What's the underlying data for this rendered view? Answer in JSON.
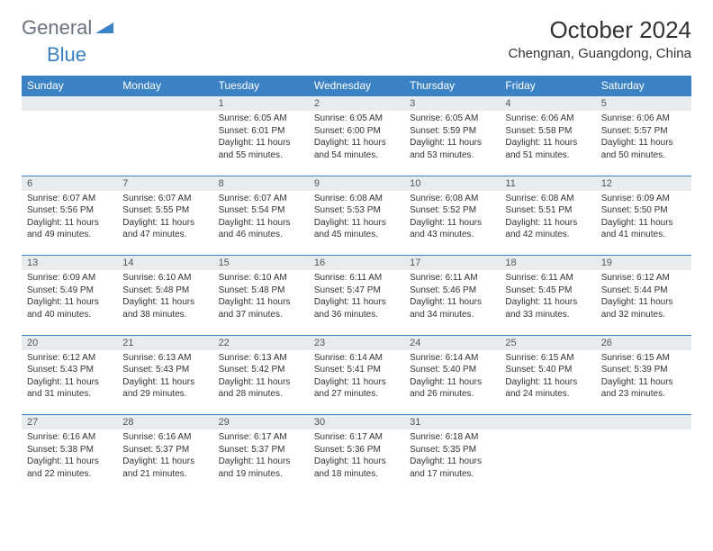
{
  "brand": {
    "general": "General",
    "blue": "Blue"
  },
  "title": "October 2024",
  "location": "Chengnan, Guangdong, China",
  "colors": {
    "header_bg": "#3b82c4",
    "header_text": "#ffffff",
    "daynum_bg": "#e8ecef",
    "grid_line": "#3b82c4",
    "text": "#333333",
    "logo_gray": "#6b7280"
  },
  "dayNames": [
    "Sunday",
    "Monday",
    "Tuesday",
    "Wednesday",
    "Thursday",
    "Friday",
    "Saturday"
  ],
  "weeks": [
    [
      null,
      null,
      {
        "n": "1",
        "sr": "Sunrise: 6:05 AM",
        "ss": "Sunset: 6:01 PM",
        "dl": "Daylight: 11 hours and 55 minutes."
      },
      {
        "n": "2",
        "sr": "Sunrise: 6:05 AM",
        "ss": "Sunset: 6:00 PM",
        "dl": "Daylight: 11 hours and 54 minutes."
      },
      {
        "n": "3",
        "sr": "Sunrise: 6:05 AM",
        "ss": "Sunset: 5:59 PM",
        "dl": "Daylight: 11 hours and 53 minutes."
      },
      {
        "n": "4",
        "sr": "Sunrise: 6:06 AM",
        "ss": "Sunset: 5:58 PM",
        "dl": "Daylight: 11 hours and 51 minutes."
      },
      {
        "n": "5",
        "sr": "Sunrise: 6:06 AM",
        "ss": "Sunset: 5:57 PM",
        "dl": "Daylight: 11 hours and 50 minutes."
      }
    ],
    [
      {
        "n": "6",
        "sr": "Sunrise: 6:07 AM",
        "ss": "Sunset: 5:56 PM",
        "dl": "Daylight: 11 hours and 49 minutes."
      },
      {
        "n": "7",
        "sr": "Sunrise: 6:07 AM",
        "ss": "Sunset: 5:55 PM",
        "dl": "Daylight: 11 hours and 47 minutes."
      },
      {
        "n": "8",
        "sr": "Sunrise: 6:07 AM",
        "ss": "Sunset: 5:54 PM",
        "dl": "Daylight: 11 hours and 46 minutes."
      },
      {
        "n": "9",
        "sr": "Sunrise: 6:08 AM",
        "ss": "Sunset: 5:53 PM",
        "dl": "Daylight: 11 hours and 45 minutes."
      },
      {
        "n": "10",
        "sr": "Sunrise: 6:08 AM",
        "ss": "Sunset: 5:52 PM",
        "dl": "Daylight: 11 hours and 43 minutes."
      },
      {
        "n": "11",
        "sr": "Sunrise: 6:08 AM",
        "ss": "Sunset: 5:51 PM",
        "dl": "Daylight: 11 hours and 42 minutes."
      },
      {
        "n": "12",
        "sr": "Sunrise: 6:09 AM",
        "ss": "Sunset: 5:50 PM",
        "dl": "Daylight: 11 hours and 41 minutes."
      }
    ],
    [
      {
        "n": "13",
        "sr": "Sunrise: 6:09 AM",
        "ss": "Sunset: 5:49 PM",
        "dl": "Daylight: 11 hours and 40 minutes."
      },
      {
        "n": "14",
        "sr": "Sunrise: 6:10 AM",
        "ss": "Sunset: 5:48 PM",
        "dl": "Daylight: 11 hours and 38 minutes."
      },
      {
        "n": "15",
        "sr": "Sunrise: 6:10 AM",
        "ss": "Sunset: 5:48 PM",
        "dl": "Daylight: 11 hours and 37 minutes."
      },
      {
        "n": "16",
        "sr": "Sunrise: 6:11 AM",
        "ss": "Sunset: 5:47 PM",
        "dl": "Daylight: 11 hours and 36 minutes."
      },
      {
        "n": "17",
        "sr": "Sunrise: 6:11 AM",
        "ss": "Sunset: 5:46 PM",
        "dl": "Daylight: 11 hours and 34 minutes."
      },
      {
        "n": "18",
        "sr": "Sunrise: 6:11 AM",
        "ss": "Sunset: 5:45 PM",
        "dl": "Daylight: 11 hours and 33 minutes."
      },
      {
        "n": "19",
        "sr": "Sunrise: 6:12 AM",
        "ss": "Sunset: 5:44 PM",
        "dl": "Daylight: 11 hours and 32 minutes."
      }
    ],
    [
      {
        "n": "20",
        "sr": "Sunrise: 6:12 AM",
        "ss": "Sunset: 5:43 PM",
        "dl": "Daylight: 11 hours and 31 minutes."
      },
      {
        "n": "21",
        "sr": "Sunrise: 6:13 AM",
        "ss": "Sunset: 5:43 PM",
        "dl": "Daylight: 11 hours and 29 minutes."
      },
      {
        "n": "22",
        "sr": "Sunrise: 6:13 AM",
        "ss": "Sunset: 5:42 PM",
        "dl": "Daylight: 11 hours and 28 minutes."
      },
      {
        "n": "23",
        "sr": "Sunrise: 6:14 AM",
        "ss": "Sunset: 5:41 PM",
        "dl": "Daylight: 11 hours and 27 minutes."
      },
      {
        "n": "24",
        "sr": "Sunrise: 6:14 AM",
        "ss": "Sunset: 5:40 PM",
        "dl": "Daylight: 11 hours and 26 minutes."
      },
      {
        "n": "25",
        "sr": "Sunrise: 6:15 AM",
        "ss": "Sunset: 5:40 PM",
        "dl": "Daylight: 11 hours and 24 minutes."
      },
      {
        "n": "26",
        "sr": "Sunrise: 6:15 AM",
        "ss": "Sunset: 5:39 PM",
        "dl": "Daylight: 11 hours and 23 minutes."
      }
    ],
    [
      {
        "n": "27",
        "sr": "Sunrise: 6:16 AM",
        "ss": "Sunset: 5:38 PM",
        "dl": "Daylight: 11 hours and 22 minutes."
      },
      {
        "n": "28",
        "sr": "Sunrise: 6:16 AM",
        "ss": "Sunset: 5:37 PM",
        "dl": "Daylight: 11 hours and 21 minutes."
      },
      {
        "n": "29",
        "sr": "Sunrise: 6:17 AM",
        "ss": "Sunset: 5:37 PM",
        "dl": "Daylight: 11 hours and 19 minutes."
      },
      {
        "n": "30",
        "sr": "Sunrise: 6:17 AM",
        "ss": "Sunset: 5:36 PM",
        "dl": "Daylight: 11 hours and 18 minutes."
      },
      {
        "n": "31",
        "sr": "Sunrise: 6:18 AM",
        "ss": "Sunset: 5:35 PM",
        "dl": "Daylight: 11 hours and 17 minutes."
      },
      null,
      null
    ]
  ]
}
